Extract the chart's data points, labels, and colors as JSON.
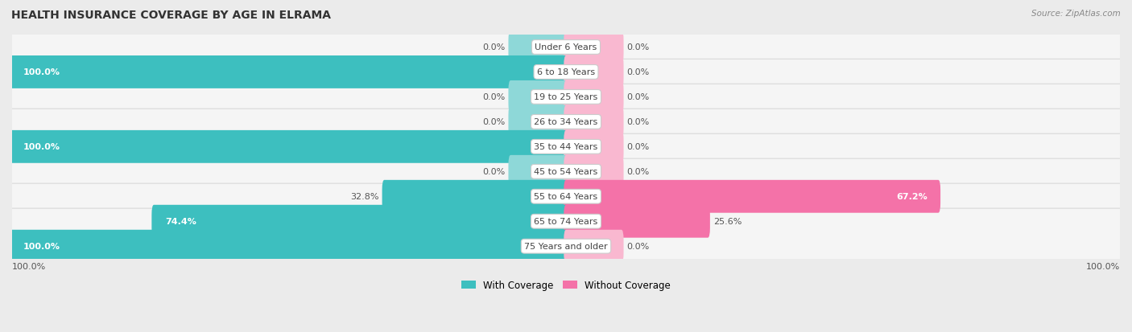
{
  "title": "HEALTH INSURANCE COVERAGE BY AGE IN ELRAMA",
  "source": "Source: ZipAtlas.com",
  "categories": [
    "Under 6 Years",
    "6 to 18 Years",
    "19 to 25 Years",
    "26 to 34 Years",
    "35 to 44 Years",
    "45 to 54 Years",
    "55 to 64 Years",
    "65 to 74 Years",
    "75 Years and older"
  ],
  "with_coverage": [
    0.0,
    100.0,
    0.0,
    0.0,
    100.0,
    0.0,
    32.8,
    74.4,
    100.0
  ],
  "without_coverage": [
    0.0,
    0.0,
    0.0,
    0.0,
    0.0,
    0.0,
    67.2,
    25.6,
    0.0
  ],
  "color_with": "#3DBFBF",
  "color_with_stub": "#8ED8D8",
  "color_without": "#F472A8",
  "color_without_stub": "#F9B8D0",
  "bg_color": "#ebebeb",
  "row_bg": "#f5f5f5",
  "row_border": "#d8d8d8",
  "legend_with": "With Coverage",
  "legend_without": "Without Coverage",
  "x_left_label": "100.0%",
  "x_right_label": "100.0%",
  "max_val": 100.0,
  "stub_size": 10.0
}
